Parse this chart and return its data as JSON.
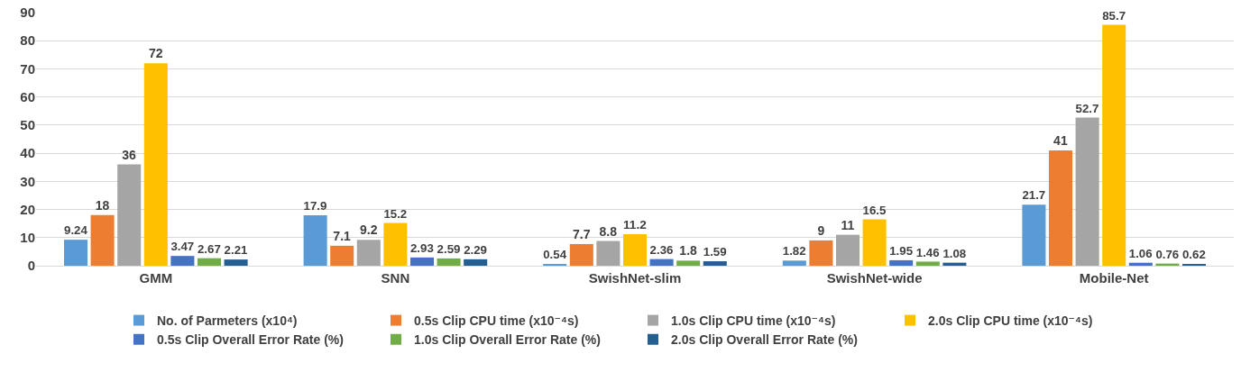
{
  "chart_data": {
    "type": "bar",
    "categories": [
      "GMM",
      "SNN",
      "SwishNet-slim",
      "SwishNet-wide",
      "Mobile-Net"
    ],
    "series": [
      {
        "name": "No. of Parmeters (x10⁴)",
        "color": "#5b9bd5",
        "values": [
          9.24,
          17.9,
          0.54,
          1.82,
          21.7
        ]
      },
      {
        "name": "0.5s Clip CPU time (x10⁻⁴s)",
        "color": "#ed7d31",
        "values": [
          18,
          7.1,
          7.7,
          9,
          41
        ]
      },
      {
        "name": "1.0s Clip CPU time (x10⁻⁴s)",
        "color": "#a5a5a5",
        "values": [
          36,
          9.2,
          8.8,
          11,
          52.7
        ]
      },
      {
        "name": "2.0s Clip CPU time (x10⁻⁴s)",
        "color": "#ffc000",
        "values": [
          72,
          15.2,
          11.2,
          16.5,
          85.7
        ]
      },
      {
        "name": "0.5s Clip Overall Error Rate (%)",
        "color": "#4472c4",
        "values": [
          3.47,
          2.93,
          2.36,
          1.95,
          1.06
        ]
      },
      {
        "name": "1.0s Clip Overall Error Rate (%)",
        "color": "#70ad47",
        "values": [
          2.67,
          2.59,
          1.8,
          1.46,
          0.76
        ]
      },
      {
        "name": "2.0s Clip Overall Error Rate (%)",
        "color": "#255e91",
        "values": [
          2.21,
          2.29,
          1.59,
          1.08,
          0.62
        ]
      }
    ],
    "ylim": [
      0,
      90
    ],
    "yticks": [
      0,
      10,
      20,
      30,
      40,
      50,
      60,
      70,
      80,
      90
    ],
    "grid": "y",
    "legend": "bottom",
    "data_labels": true
  }
}
